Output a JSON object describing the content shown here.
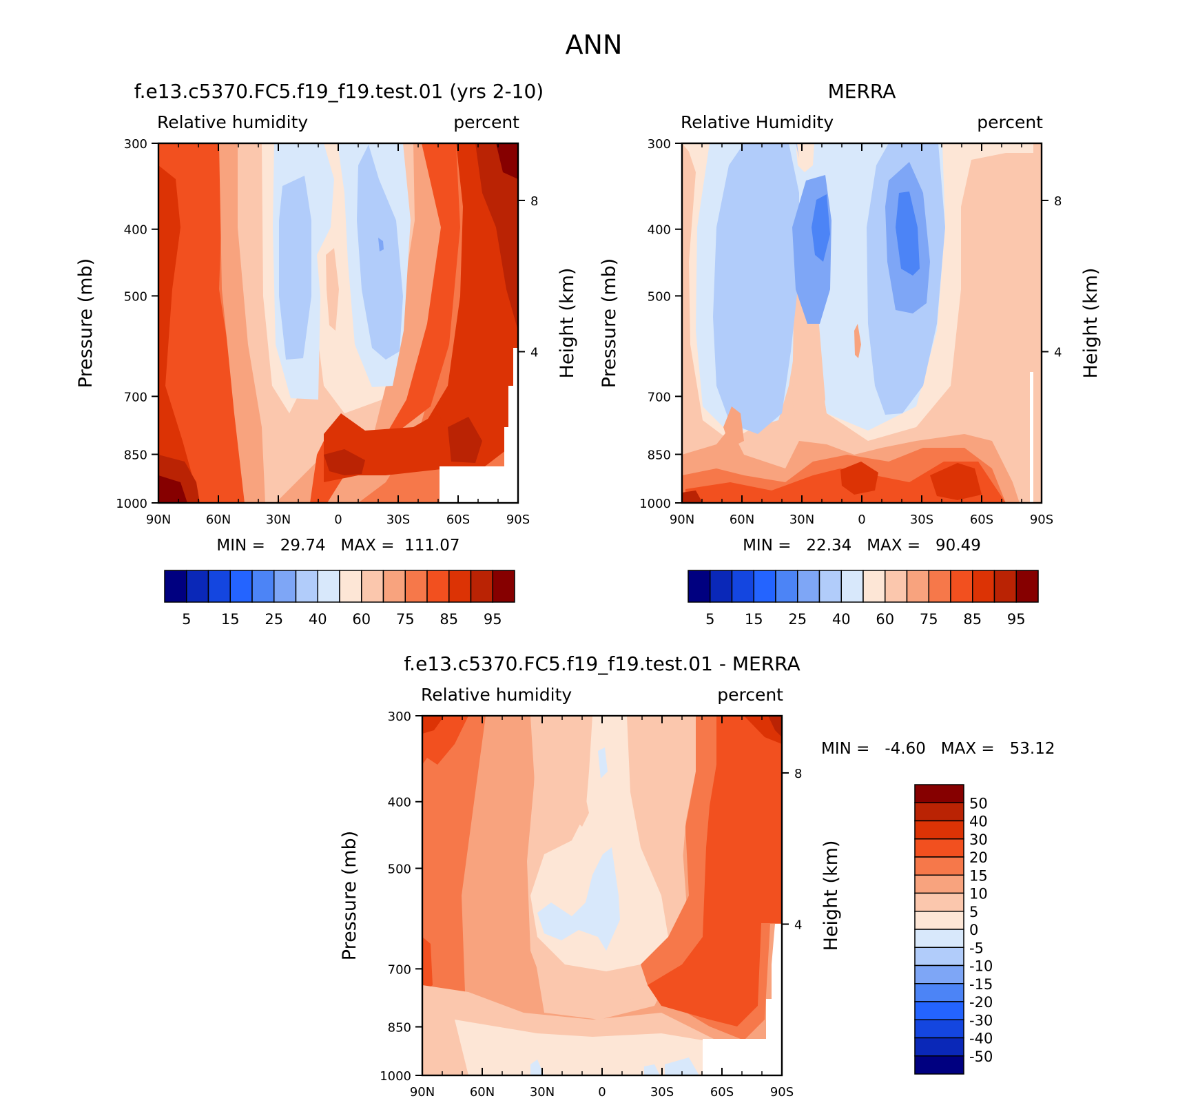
{
  "main_title": "ANN",
  "chart_data": [
    {
      "type": "contour",
      "title": "f.e13.c5370.FC5.f19_f19.test.01 (yrs 2-10)",
      "left_label": "Relative humidity",
      "right_label": "percent",
      "ylabel": "Pressure (mb)",
      "ylabel_right": "Height (km)",
      "x_ticks": [
        "90N",
        "60N",
        "30N",
        "0",
        "30S",
        "60S",
        "90S"
      ],
      "y_ticks": [
        300,
        400,
        500,
        700,
        850,
        1000
      ],
      "height_ticks": [
        8,
        4
      ],
      "stats": "MIN =   29.74   MAX =  111.07",
      "min": 29.74,
      "max": 111.07,
      "levels": [
        "5",
        "15",
        "25",
        "40",
        "60",
        "75",
        "85",
        "95"
      ],
      "band_colors": [
        "#000080",
        "#0a28b8",
        "#1446e0",
        "#2464ff",
        "#4c84f6",
        "#7ea6f6",
        "#b1ccfa",
        "#d8e8fb",
        "#fde6d6",
        "#fbc7ad",
        "#f8a37e",
        "#f6784a",
        "#f2501f",
        "#dc3305",
        "#ba2304",
        "#860000"
      ]
    },
    {
      "type": "contour",
      "title": "MERRA",
      "left_label": "Relative Humidity",
      "right_label": "percent",
      "ylabel": "Pressure (mb)",
      "ylabel_right": "Height (km)",
      "x_ticks": [
        "90N",
        "60N",
        "30N",
        "0",
        "30S",
        "60S",
        "90S"
      ],
      "y_ticks": [
        300,
        400,
        500,
        700,
        850,
        1000
      ],
      "height_ticks": [
        8,
        4
      ],
      "stats": "MIN =   22.34   MAX =   90.49",
      "min": 22.34,
      "max": 90.49,
      "levels": [
        "5",
        "15",
        "25",
        "40",
        "60",
        "75",
        "85",
        "95"
      ],
      "band_colors": [
        "#000080",
        "#0a28b8",
        "#1446e0",
        "#2464ff",
        "#4c84f6",
        "#7ea6f6",
        "#b1ccfa",
        "#d8e8fb",
        "#fde6d6",
        "#fbc7ad",
        "#f8a37e",
        "#f6784a",
        "#f2501f",
        "#dc3305",
        "#ba2304",
        "#860000"
      ]
    },
    {
      "type": "contour",
      "title": "f.e13.c5370.FC5.f19_f19.test.01 - MERRA",
      "left_label": "Relative humidity",
      "right_label": "percent",
      "ylabel": "Pressure (mb)",
      "ylabel_right": "Height (km)",
      "x_ticks": [
        "90N",
        "60N",
        "30N",
        "0",
        "30S",
        "60S",
        "90S"
      ],
      "y_ticks": [
        300,
        400,
        500,
        700,
        850,
        1000
      ],
      "height_ticks": [
        8,
        4
      ],
      "stats": "MIN =   -4.60   MAX =   53.12",
      "min": -4.6,
      "max": 53.12,
      "levels": [
        "50",
        "40",
        "30",
        "20",
        "15",
        "10",
        "5",
        "0",
        "-5",
        "-10",
        "-15",
        "-20",
        "-30",
        "-40",
        "-50"
      ],
      "band_colors": [
        "#860000",
        "#ba2304",
        "#dc3305",
        "#f2501f",
        "#f6784a",
        "#f8a37e",
        "#fbc7ad",
        "#fde6d6",
        "#d8e8fb",
        "#b1ccfa",
        "#7ea6f6",
        "#4c84f6",
        "#2464ff",
        "#1446e0",
        "#0a28b8",
        "#000080"
      ]
    }
  ]
}
